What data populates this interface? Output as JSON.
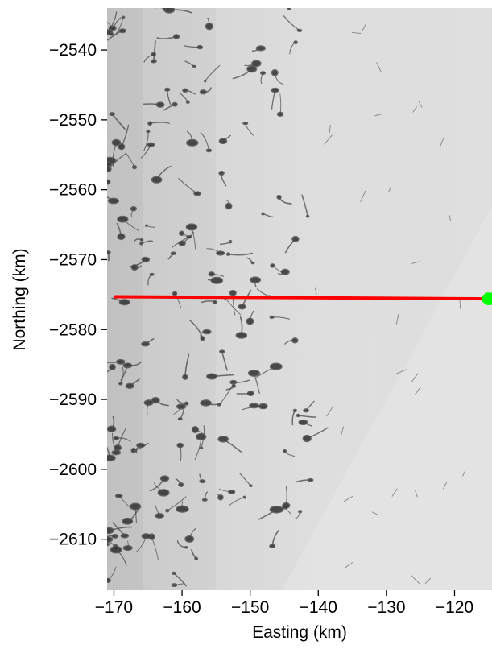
{
  "chart_data": {
    "type": "scatter",
    "title": "",
    "xlabel": "Easting (km)",
    "ylabel": "Northing (km)",
    "xlim": [
      -171,
      -114.5
    ],
    "ylim": [
      -2617.3,
      -2534.0
    ],
    "xticks": [
      -170,
      -160,
      -150,
      -140,
      -130,
      -120
    ],
    "xtick_labels": [
      "−170",
      "−160",
      "−150",
      "−140",
      "−130",
      "−120"
    ],
    "yticks": [
      -2540,
      -2550,
      -2560,
      -2570,
      -2580,
      -2590,
      -2600,
      -2610
    ],
    "ytick_labels": [
      "−2540",
      "−2550",
      "−2560",
      "−2570",
      "−2580",
      "−2590",
      "−2600",
      "−2610"
    ],
    "background": "grayscale satellite image of ice sheet with dark melt ponds and streams",
    "grid": false,
    "series": [
      {
        "kind": "line",
        "color": "#ff0000",
        "x": [
          -169.8,
          -115.0
        ],
        "y": [
          -2575.3,
          -2575.6
        ]
      },
      {
        "kind": "marker",
        "color": "#00ff00",
        "marker": "octagon",
        "x": [
          -115.0
        ],
        "y": [
          -2575.6
        ]
      }
    ]
  }
}
